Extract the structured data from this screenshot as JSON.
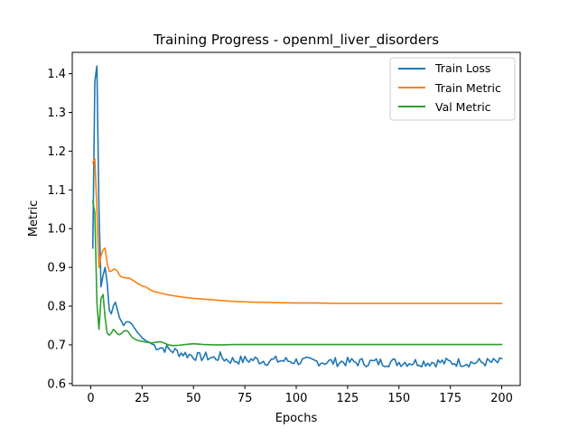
{
  "chart_data": {
    "type": "line",
    "title": "Training Progress - openml_liver_disorders",
    "xlabel": "Epochs",
    "ylabel": "Metric",
    "xlim": [
      -9,
      209
    ],
    "ylim": [
      0.595,
      1.455
    ],
    "xticks": [
      0,
      25,
      50,
      75,
      100,
      125,
      150,
      175,
      200
    ],
    "yticks": [
      0.6,
      0.7,
      0.8,
      0.9,
      1.0,
      1.1,
      1.2,
      1.3,
      1.4
    ],
    "xtick_labels": [
      "0",
      "25",
      "50",
      "75",
      "100",
      "125",
      "150",
      "175",
      "200"
    ],
    "ytick_labels": [
      "0.6",
      "0.7",
      "0.8",
      "0.9",
      "1.0",
      "1.1",
      "1.2",
      "1.3",
      "1.4"
    ],
    "grid": false,
    "legend_position": "top-right",
    "series": [
      {
        "name": "Train Loss",
        "color": "#1f77b4",
        "points": [
          [
            1,
            0.95
          ],
          [
            2,
            1.38
          ],
          [
            3,
            1.42
          ],
          [
            4,
            1.05
          ],
          [
            5,
            0.85
          ],
          [
            6,
            0.88
          ],
          [
            7,
            0.9
          ],
          [
            8,
            0.86
          ],
          [
            9,
            0.79
          ],
          [
            10,
            0.78
          ],
          [
            11,
            0.8
          ],
          [
            12,
            0.81
          ],
          [
            13,
            0.79
          ],
          [
            14,
            0.77
          ],
          [
            15,
            0.76
          ],
          [
            16,
            0.75
          ],
          [
            17,
            0.758
          ],
          [
            18,
            0.76
          ],
          [
            19,
            0.758
          ],
          [
            20,
            0.754
          ],
          [
            21,
            0.745
          ],
          [
            22,
            0.738
          ],
          [
            23,
            0.73
          ],
          [
            24,
            0.725
          ],
          [
            25,
            0.718
          ],
          [
            27,
            0.71
          ],
          [
            29,
            0.705
          ],
          [
            31,
            0.698
          ],
          [
            33,
            0.695
          ],
          [
            35,
            0.692
          ],
          [
            37,
            0.69
          ],
          [
            39,
            0.686
          ],
          [
            41,
            0.684
          ],
          [
            43,
            0.68
          ],
          [
            45,
            0.678
          ],
          [
            47,
            0.675
          ],
          [
            50,
            0.672
          ],
          [
            53,
            0.668
          ],
          [
            56,
            0.67
          ],
          [
            60,
            0.665
          ],
          [
            63,
            0.67
          ],
          [
            66,
            0.662
          ],
          [
            70,
            0.66
          ],
          [
            75,
            0.661
          ],
          [
            80,
            0.662
          ],
          [
            85,
            0.658
          ],
          [
            90,
            0.66
          ],
          [
            95,
            0.659
          ],
          [
            100,
            0.658
          ],
          [
            105,
            0.657
          ],
          [
            110,
            0.657
          ],
          [
            115,
            0.656
          ],
          [
            120,
            0.656
          ],
          [
            125,
            0.656
          ],
          [
            130,
            0.655
          ],
          [
            135,
            0.655
          ],
          [
            140,
            0.655
          ],
          [
            145,
            0.655
          ],
          [
            150,
            0.655
          ],
          [
            155,
            0.655
          ],
          [
            160,
            0.655
          ],
          [
            165,
            0.655
          ],
          [
            170,
            0.655
          ],
          [
            175,
            0.655
          ],
          [
            180,
            0.655
          ],
          [
            185,
            0.654
          ],
          [
            190,
            0.655
          ],
          [
            195,
            0.655
          ],
          [
            200,
            0.655
          ]
        ],
        "noise_from_x": 30,
        "noise_amplitude": 0.012
      },
      {
        "name": "Train Metric",
        "color": "#ff7f0e",
        "points": [
          [
            1,
            1.17
          ],
          [
            2,
            1.18
          ],
          [
            3,
            1.05
          ],
          [
            4,
            0.9
          ],
          [
            5,
            0.93
          ],
          [
            6,
            0.945
          ],
          [
            7,
            0.95
          ],
          [
            8,
            0.91
          ],
          [
            9,
            0.89
          ],
          [
            10,
            0.89
          ],
          [
            11,
            0.895
          ],
          [
            12,
            0.895
          ],
          [
            13,
            0.89
          ],
          [
            14,
            0.88
          ],
          [
            15,
            0.875
          ],
          [
            17,
            0.873
          ],
          [
            19,
            0.872
          ],
          [
            21,
            0.865
          ],
          [
            23,
            0.858
          ],
          [
            25,
            0.852
          ],
          [
            27,
            0.849
          ],
          [
            29,
            0.842
          ],
          [
            31,
            0.837
          ],
          [
            33,
            0.835
          ],
          [
            36,
            0.831
          ],
          [
            40,
            0.827
          ],
          [
            45,
            0.823
          ],
          [
            50,
            0.82
          ],
          [
            55,
            0.818
          ],
          [
            60,
            0.816
          ],
          [
            65,
            0.814
          ],
          [
            70,
            0.812
          ],
          [
            75,
            0.811
          ],
          [
            80,
            0.81
          ],
          [
            90,
            0.809
          ],
          [
            100,
            0.808
          ],
          [
            110,
            0.808
          ],
          [
            120,
            0.807
          ],
          [
            130,
            0.807
          ],
          [
            140,
            0.807
          ],
          [
            150,
            0.807
          ],
          [
            160,
            0.807
          ],
          [
            170,
            0.807
          ],
          [
            180,
            0.807
          ],
          [
            190,
            0.807
          ],
          [
            200,
            0.807
          ]
        ]
      },
      {
        "name": "Val Metric",
        "color": "#2ca02c",
        "points": [
          [
            1,
            1.07
          ],
          [
            2,
            1.04
          ],
          [
            3,
            0.81
          ],
          [
            4,
            0.74
          ],
          [
            5,
            0.82
          ],
          [
            6,
            0.83
          ],
          [
            7,
            0.77
          ],
          [
            8,
            0.73
          ],
          [
            9,
            0.725
          ],
          [
            10,
            0.73
          ],
          [
            11,
            0.74
          ],
          [
            12,
            0.735
          ],
          [
            13,
            0.728
          ],
          [
            14,
            0.726
          ],
          [
            15,
            0.73
          ],
          [
            16,
            0.735
          ],
          [
            17,
            0.737
          ],
          [
            18,
            0.735
          ],
          [
            19,
            0.728
          ],
          [
            20,
            0.72
          ],
          [
            22,
            0.713
          ],
          [
            24,
            0.71
          ],
          [
            26,
            0.708
          ],
          [
            28,
            0.706
          ],
          [
            30,
            0.705
          ],
          [
            32,
            0.707
          ],
          [
            34,
            0.708
          ],
          [
            36,
            0.704
          ],
          [
            38,
            0.7
          ],
          [
            40,
            0.698
          ],
          [
            43,
            0.699
          ],
          [
            46,
            0.701
          ],
          [
            50,
            0.703
          ],
          [
            55,
            0.701
          ],
          [
            60,
            0.7
          ],
          [
            65,
            0.7
          ],
          [
            70,
            0.701
          ],
          [
            75,
            0.701
          ],
          [
            80,
            0.701
          ],
          [
            90,
            0.701
          ],
          [
            100,
            0.701
          ],
          [
            110,
            0.701
          ],
          [
            120,
            0.701
          ],
          [
            130,
            0.701
          ],
          [
            140,
            0.701
          ],
          [
            150,
            0.701
          ],
          [
            160,
            0.701
          ],
          [
            170,
            0.701
          ],
          [
            180,
            0.701
          ],
          [
            190,
            0.701
          ],
          [
            200,
            0.701
          ]
        ]
      }
    ]
  }
}
